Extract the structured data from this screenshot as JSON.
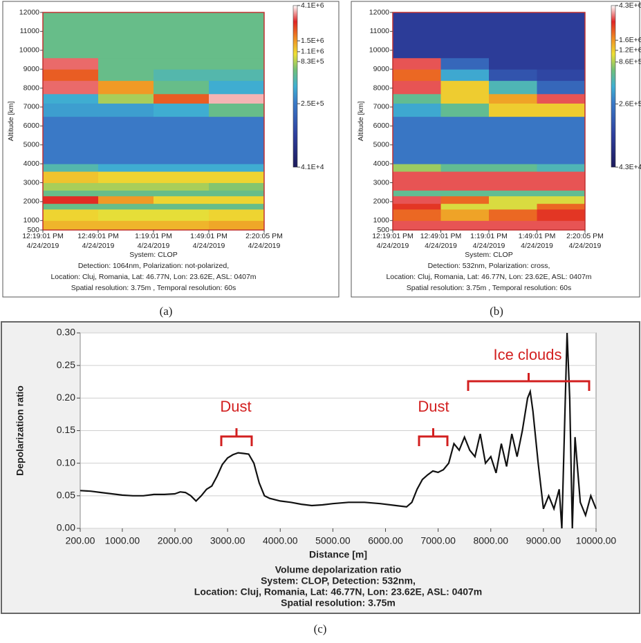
{
  "chart_data": [
    {
      "type": "heatmap",
      "panel_label": "(a)",
      "y_label": "Altitude [km]",
      "ylim": [
        500,
        12000
      ],
      "yticks": [
        500,
        1000,
        2000,
        3000,
        4000,
        5000,
        6000,
        7000,
        8000,
        9000,
        10000,
        11000,
        12000
      ],
      "categories": [
        "12:19:01 PM",
        "12:49:01 PM",
        "1:19:01 PM",
        "1:49:01 PM",
        "2:20:05 PM"
      ],
      "category_dates": [
        "4/24/2019",
        "4/24/2019",
        "4/24/2019",
        "4/24/2019",
        "4/24/2019"
      ],
      "captions": [
        "System: CLOP",
        "Detection: 1064nm, Polarization: not-polarized,",
        "Location: Cluj, Romania, Lat: 46.77N, Lon: 23.62E, ASL: 0407m",
        "Spatial resolution: 3.75m , Temporal resolution: 60s"
      ],
      "clim": [
        41000,
        4100000
      ],
      "log_color": true,
      "cticks": [
        {
          "value": 4100000,
          "label": "4.1E+6"
        },
        {
          "value": 1500000,
          "label": "1.5E+6"
        },
        {
          "value": 1100000,
          "label": "1.1E+6"
        },
        {
          "value": 830000,
          "label": "8.3E+5"
        },
        {
          "value": 250000,
          "label": "2.5E+5"
        },
        {
          "value": 41000,
          "label": "4.1E+4"
        }
      ],
      "ybins": [
        500,
        1000,
        1600,
        1900,
        2300,
        2600,
        3000,
        3600,
        4000,
        6500,
        7200,
        7700,
        8400,
        9000,
        9600,
        12000
      ],
      "values": [
        [
          1300000,
          1300000,
          1300000,
          1400000
        ],
        [
          1100000,
          1000000,
          1000000,
          1100000
        ],
        [
          600000,
          600000,
          600000,
          600000
        ],
        [
          2500000,
          1500000,
          1100000,
          1100000
        ],
        [
          600000,
          600000,
          600000,
          600000
        ],
        [
          800000,
          800000,
          800000,
          700000
        ],
        [
          1200000,
          1100000,
          1100000,
          1100000
        ],
        [
          500000,
          400000,
          400000,
          400000
        ],
        [
          250000,
          250000,
          250000,
          250000
        ],
        [
          350000,
          350000,
          400000,
          600000
        ],
        [
          400000,
          800000,
          2000000,
          3500000
        ],
        [
          3000000,
          1500000,
          600000,
          400000
        ],
        [
          2000000,
          600000,
          500000,
          500000
        ],
        [
          3000000,
          600000,
          600000,
          600000
        ],
        [
          600000,
          600000,
          600000,
          600000
        ]
      ]
    },
    {
      "type": "heatmap",
      "panel_label": "(b)",
      "y_label": "Altitude [km]",
      "ylim": [
        500,
        12000
      ],
      "yticks": [
        500,
        1000,
        2000,
        3000,
        4000,
        5000,
        6000,
        7000,
        8000,
        9000,
        10000,
        11000,
        12000
      ],
      "categories": [
        "12:19:01 PM",
        "12:49:01 PM",
        "1:19:01 PM",
        "1:49:01 PM",
        "2:20:05 PM"
      ],
      "category_dates": [
        "4/24/2019",
        "4/24/2019",
        "4/24/2019",
        "4/24/2019",
        "4/24/2019"
      ],
      "captions": [
        "System: CLOP",
        "Detection: 532nm, Polarization: cross,",
        "Location: Cluj, Romania, Lat: 46.77N, Lon: 23.62E, ASL: 0407m",
        "Spatial resolution: 3.75m , Temporal resolution: 60s"
      ],
      "clim": [
        43000,
        4300000
      ],
      "log_color": true,
      "cticks": [
        {
          "value": 4300000,
          "label": "4.3E+6"
        },
        {
          "value": 1600000,
          "label": "1.6E+6"
        },
        {
          "value": 1200000,
          "label": "1.2E+6"
        },
        {
          "value": 860000,
          "label": "8.6E+5"
        },
        {
          "value": 260000,
          "label": "2.6E+5"
        },
        {
          "value": 43000,
          "label": "4.3E+4"
        }
      ],
      "ybins": [
        500,
        1000,
        1600,
        1900,
        2300,
        2600,
        3000,
        3600,
        4000,
        6500,
        7200,
        7700,
        8400,
        9000,
        9600,
        12000
      ],
      "values": [
        [
          3000000,
          3000000,
          3000000,
          3000000
        ],
        [
          2000000,
          1500000,
          2000000,
          2500000
        ],
        [
          2500000,
          1000000,
          1000000,
          2000000
        ],
        [
          3000000,
          2000000,
          1000000,
          1000000
        ],
        [
          600000,
          600000,
          600000,
          600000
        ],
        [
          3000000,
          3000000,
          3000000,
          3000000
        ],
        [
          3000000,
          3000000,
          3000000,
          3000000
        ],
        [
          800000,
          600000,
          600000,
          500000
        ],
        [
          250000,
          250000,
          250000,
          250000
        ],
        [
          400000,
          600000,
          1200000,
          1200000
        ],
        [
          600000,
          1200000,
          1500000,
          3000000
        ],
        [
          3000000,
          1200000,
          500000,
          200000
        ],
        [
          2000000,
          400000,
          150000,
          120000
        ],
        [
          3000000,
          200000,
          100000,
          100000
        ],
        [
          100000,
          100000,
          100000,
          100000
        ]
      ]
    },
    {
      "type": "line",
      "panel_label": "(c)",
      "x_label": "Distance [m]",
      "y_label": "Depolarization ratio",
      "captions": [
        "Volume depolarization ratio",
        "System: CLOP, Detection: 532nm,",
        "Location: Cluj, Romania, Lat: 46.77N, Lon: 23.62E, ASL: 0407m",
        "Spatial resolution: 3.75m"
      ],
      "annotations": [
        "Dust",
        "Dust",
        "Ice clouds"
      ],
      "xlim": [
        200,
        10000
      ],
      "xticks": [
        {
          "value": 200,
          "label": "200.00"
        },
        {
          "value": 1000,
          "label": "1000.00"
        },
        {
          "value": 2000,
          "label": "2000.00"
        },
        {
          "value": 3000,
          "label": "3000.00"
        },
        {
          "value": 4000,
          "label": "4000.00"
        },
        {
          "value": 5000,
          "label": "5000.00"
        },
        {
          "value": 6000,
          "label": "6000.00"
        },
        {
          "value": 7000,
          "label": "7000.00"
        },
        {
          "value": 8000,
          "label": "8000.00"
        },
        {
          "value": 9000,
          "label": "9000.00"
        },
        {
          "value": 10000,
          "label": "10000.00"
        }
      ],
      "ylim": [
        0,
        0.3
      ],
      "yticks": [
        {
          "value": 0,
          "label": "0.00"
        },
        {
          "value": 0.05,
          "label": "0.05"
        },
        {
          "value": 0.1,
          "label": "0.10"
        },
        {
          "value": 0.15,
          "label": "0.15"
        },
        {
          "value": 0.2,
          "label": "0.20"
        },
        {
          "value": 0.25,
          "label": "0.25"
        },
        {
          "value": 0.3,
          "label": "0.30"
        }
      ],
      "grid": true,
      "color": "#111111",
      "x": [
        200,
        400,
        600,
        800,
        1000,
        1200,
        1400,
        1600,
        1800,
        2000,
        2100,
        2200,
        2300,
        2400,
        2500,
        2600,
        2700,
        2800,
        2900,
        3000,
        3100,
        3200,
        3300,
        3400,
        3500,
        3600,
        3700,
        3800,
        4000,
        4200,
        4400,
        4600,
        4800,
        5000,
        5300,
        5600,
        5900,
        6200,
        6400,
        6500,
        6600,
        6700,
        6800,
        6900,
        7000,
        7100,
        7200,
        7300,
        7400,
        7500,
        7600,
        7700,
        7800,
        7900,
        8000,
        8100,
        8200,
        8300,
        8400,
        8500,
        8600,
        8700,
        8750,
        8800,
        8900,
        9000,
        9100,
        9200,
        9300,
        9350,
        9450,
        9500,
        9550,
        9600,
        9700,
        9800,
        9900,
        10000
      ],
      "values": [
        0.058,
        0.057,
        0.055,
        0.053,
        0.051,
        0.05,
        0.05,
        0.052,
        0.052,
        0.053,
        0.056,
        0.055,
        0.05,
        0.042,
        0.05,
        0.06,
        0.065,
        0.08,
        0.098,
        0.108,
        0.113,
        0.116,
        0.115,
        0.114,
        0.1,
        0.07,
        0.05,
        0.046,
        0.042,
        0.04,
        0.037,
        0.035,
        0.036,
        0.038,
        0.04,
        0.04,
        0.038,
        0.035,
        0.033,
        0.04,
        0.06,
        0.075,
        0.082,
        0.088,
        0.086,
        0.09,
        0.1,
        0.13,
        0.12,
        0.14,
        0.12,
        0.11,
        0.145,
        0.1,
        0.11,
        0.085,
        0.13,
        0.095,
        0.145,
        0.11,
        0.15,
        0.2,
        0.21,
        0.18,
        0.1,
        0.03,
        0.05,
        0.03,
        0.06,
        0,
        0.3,
        0.2,
        0,
        0.14,
        0.04,
        0.02,
        0.05,
        0.03
      ]
    }
  ]
}
